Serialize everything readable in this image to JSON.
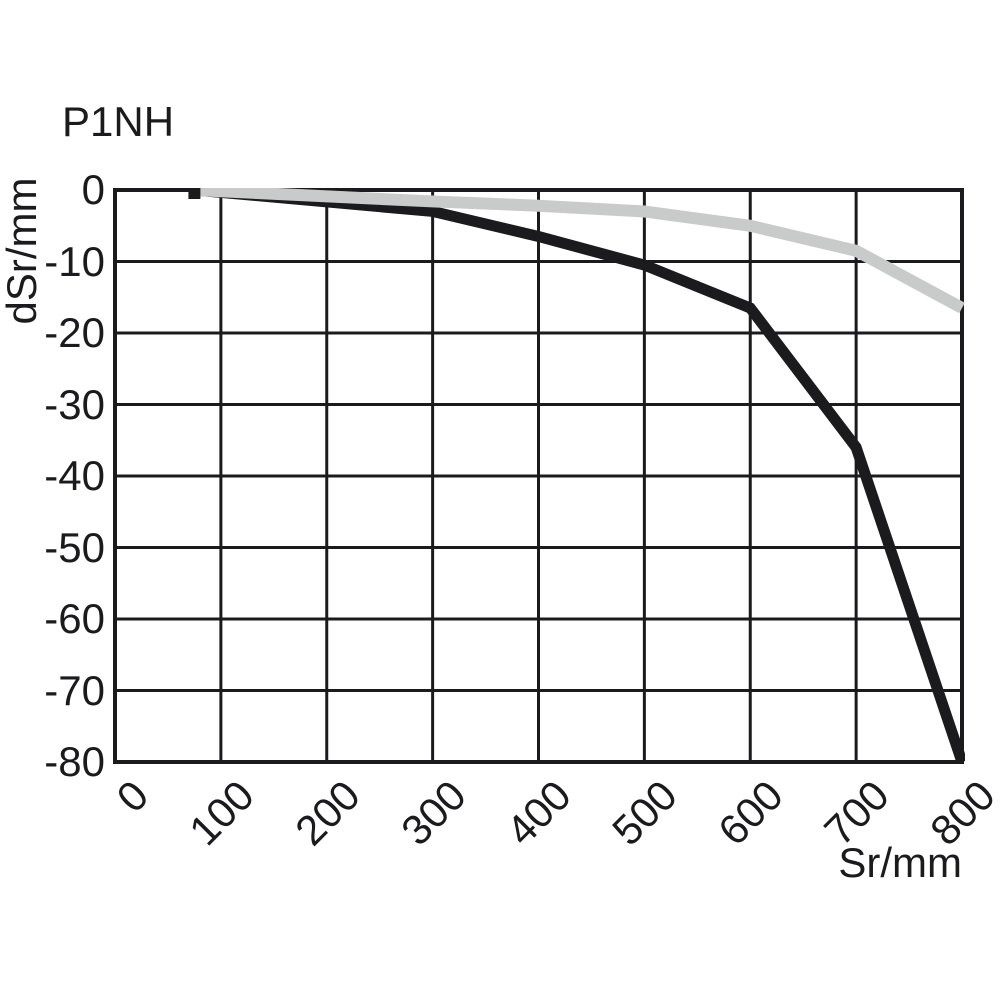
{
  "chart": {
    "title": "P1NH",
    "ylabel": "dSr/mm",
    "xlabel": "Sr/mm"
  },
  "chart_data": {
    "type": "line",
    "title": "P1NH",
    "xlabel": "Sr/mm",
    "ylabel": "dSr/mm",
    "xlim": [
      0,
      800
    ],
    "ylim": [
      -80,
      0
    ],
    "x_ticks": [
      0,
      100,
      200,
      300,
      400,
      500,
      600,
      700,
      800
    ],
    "y_ticks": [
      0,
      -10,
      -20,
      -30,
      -40,
      -50,
      -60,
      -70,
      -80
    ],
    "grid": true,
    "legend_position": "none",
    "colors": {
      "axis": "#1b1b1d",
      "background": "#ffffff",
      "series_black": "#1b1b1d",
      "series_gray": "#c9cbca"
    },
    "series": [
      {
        "name": "black-curve",
        "color": "#1b1b1d",
        "stroke_width": 11,
        "x": [
          75,
          300,
          400,
          500,
          600,
          700,
          800
        ],
        "y": [
          0,
          -3,
          -6.5,
          -10.5,
          -16.5,
          -36,
          -80
        ]
      },
      {
        "name": "gray-curve",
        "color": "#c9cbca",
        "stroke_width": 12,
        "x": [
          75,
          300,
          400,
          500,
          600,
          700,
          800
        ],
        "y": [
          0,
          -1.6,
          -2.2,
          -3,
          -5,
          -8.5,
          -16.5
        ]
      }
    ],
    "start_marker": {
      "x": 75,
      "y": 0,
      "shape": "square",
      "color": "#1b1b1d"
    }
  }
}
